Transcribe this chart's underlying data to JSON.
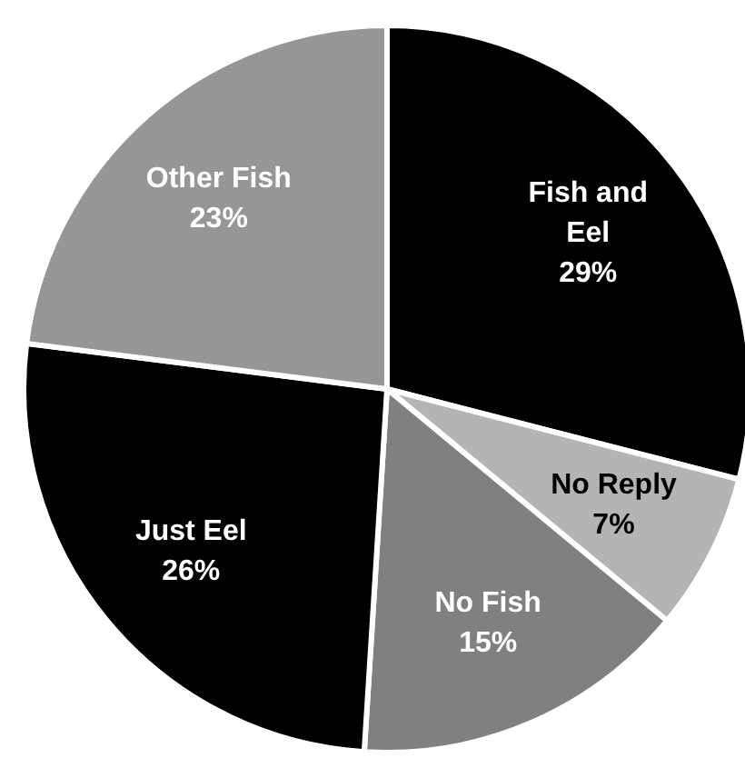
{
  "chart_data": {
    "type": "pie",
    "categories": [
      "Fish and Eel",
      "No Reply",
      "No Fish",
      "Just Eel",
      "Other Fish"
    ],
    "values": [
      29,
      7,
      15,
      26,
      23
    ],
    "colors": [
      "#000000",
      "#b4b4b4",
      "#808080",
      "#000000",
      "#969696"
    ],
    "value_labels": [
      "29%",
      "7%",
      "15%",
      "26%",
      "23%"
    ]
  }
}
